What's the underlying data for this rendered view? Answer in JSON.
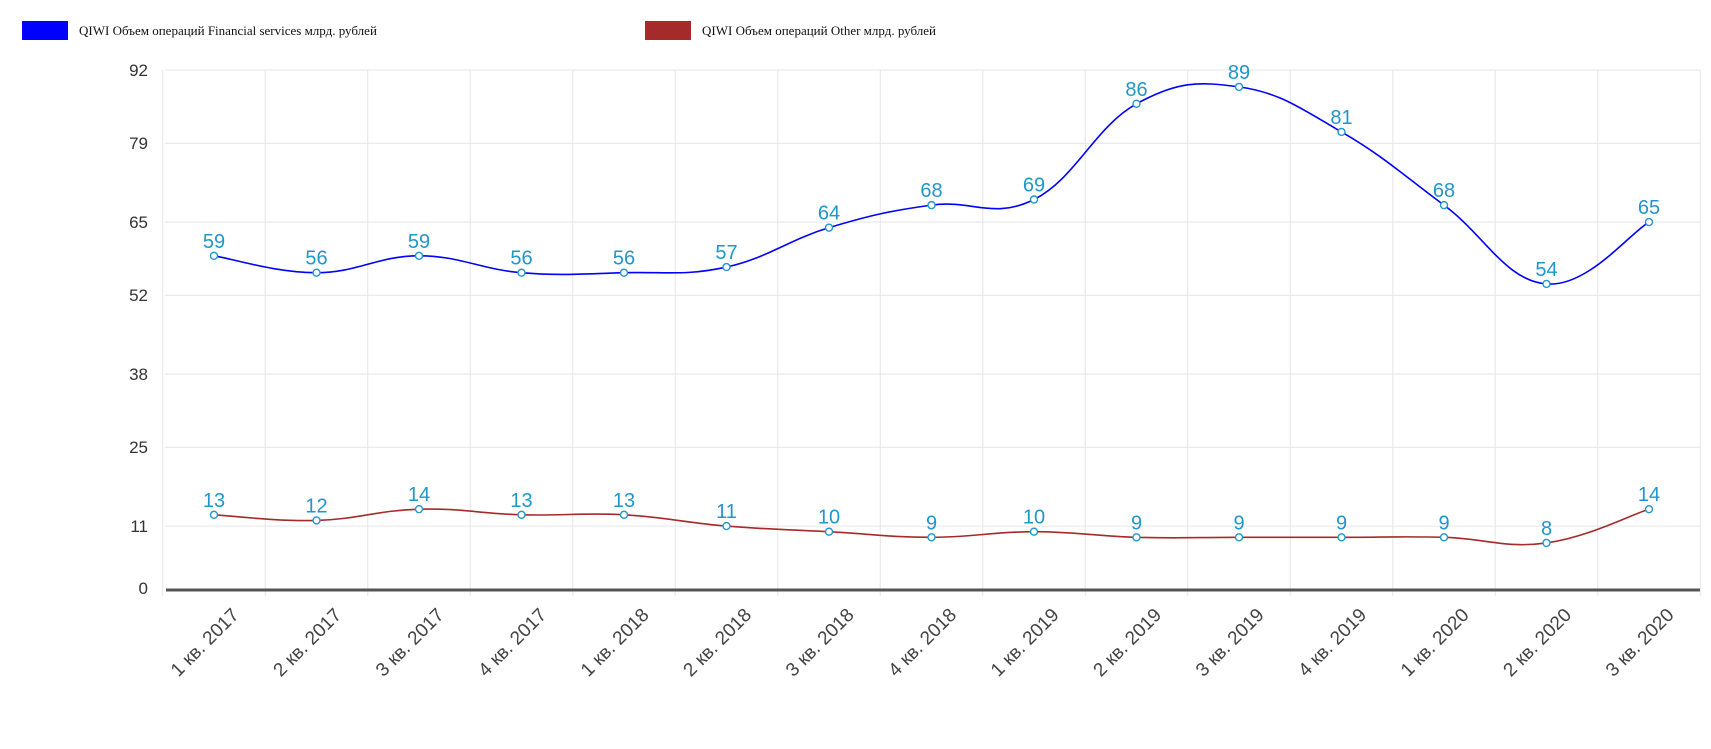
{
  "chart_data": {
    "type": "line",
    "categories": [
      "1 кв. 2017",
      "2 кв. 2017",
      "3 кв. 2017",
      "4 кв. 2017",
      "1 кв. 2018",
      "2 кв. 2018",
      "3 кв. 2018",
      "4 кв. 2018",
      "1 кв. 2019",
      "2 кв. 2019",
      "3 кв. 2019",
      "4 кв. 2019",
      "1 кв. 2020",
      "2 кв. 2020",
      "3 кв. 2020"
    ],
    "series": [
      {
        "name": "QIWI Объем операций Financial services млрд. рублей",
        "color": "#0000ff",
        "values": [
          59,
          56,
          59,
          56,
          56,
          57,
          64,
          68,
          69,
          86,
          89,
          81,
          68,
          54,
          65
        ]
      },
      {
        "name": "QIWI Объем операций Other млрд. рублей",
        "color": "#a52a2a",
        "values": [
          13,
          12,
          14,
          13,
          13,
          11,
          10,
          9,
          10,
          9,
          9,
          9,
          9,
          8,
          14
        ]
      }
    ],
    "yticks": [
      "0",
      "11",
      "25",
      "38",
      "52",
      "65",
      "79",
      "92"
    ],
    "ylim": [
      0,
      92
    ],
    "grid": true,
    "legend_position": "top-left",
    "label_color": "#1f97c9",
    "title": "",
    "xlabel": "",
    "ylabel": ""
  }
}
